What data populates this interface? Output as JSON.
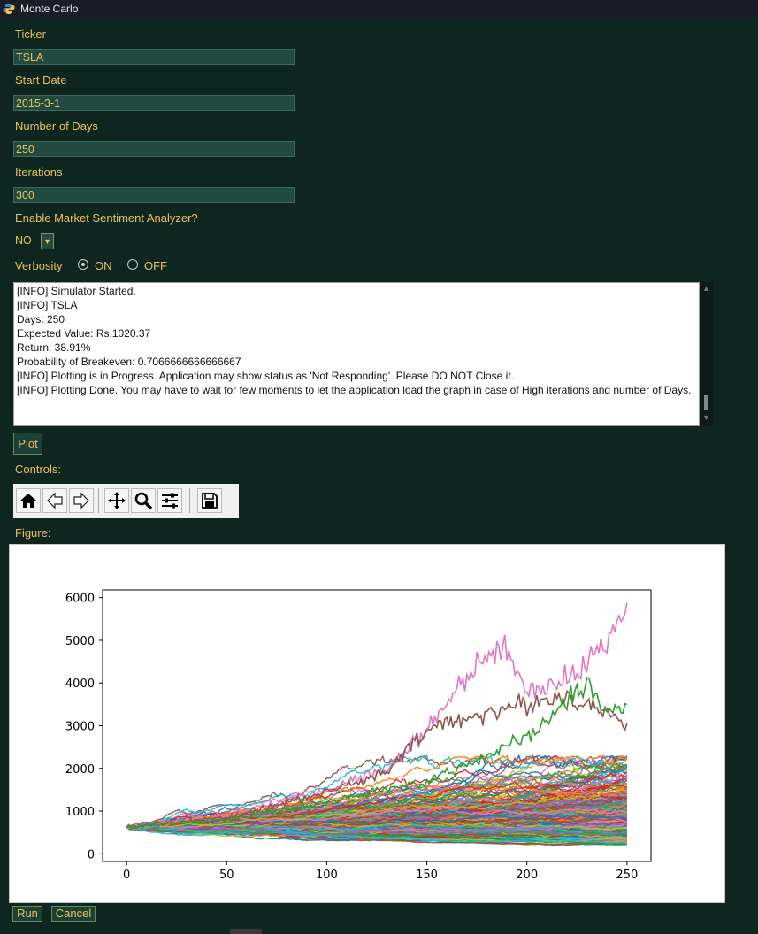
{
  "window": {
    "title": "Monte Carlo"
  },
  "form": {
    "ticker_label": "Ticker",
    "ticker_value": "TSLA",
    "start_date_label": "Start Date",
    "start_date_value": "2015-3-1",
    "days_label": "Number of Days",
    "days_value": "250",
    "iterations_label": "Iterations",
    "iterations_value": "300",
    "sentiment_label": "Enable Market Sentiment Analyzer?",
    "sentiment_value": "NO",
    "verbosity_label": "Verbosity",
    "verbosity_on": "ON",
    "verbosity_off": "OFF",
    "verbosity_selected": "ON"
  },
  "log": {
    "lines": [
      "[INFO] Simulator Started.",
      "[INFO] TSLA",
      "Days: 250",
      "Expected Value: Rs.1020.37",
      "Return: 38.91%",
      "Probability of Breakeven: 0.7066666666666667",
      "[INFO] Plotting is in Progress. Application may show status as 'Not Responding'. Please DO NOT Close it.",
      "[INFO] Plotting Done. You may have to wait for few moments to let the application load the graph in case of High iterations and number of Days."
    ]
  },
  "buttons": {
    "plot": "Plot",
    "run": "Run",
    "cancel": "Cancel"
  },
  "labels": {
    "controls": "Controls:",
    "figure": "Figure:"
  },
  "toolbar_icons": [
    "home-icon",
    "back-icon",
    "forward-icon",
    "pan-icon",
    "zoom-icon",
    "configure-icon",
    "save-icon"
  ],
  "colors": {
    "background": "#0f2620",
    "label_text": "#e8c25a",
    "field_bg": "#234a41",
    "series_palette": [
      "#1f77b4",
      "#ff7f0e",
      "#2ca02c",
      "#d62728",
      "#9467bd",
      "#8c564b",
      "#e377c2",
      "#7f7f7f",
      "#bcbd22",
      "#17becf"
    ]
  },
  "chart_data": {
    "type": "line",
    "title": "",
    "xlabel": "",
    "ylabel": "",
    "xlim": [
      -12,
      262
    ],
    "ylim": [
      -180,
      6180
    ],
    "x_ticks": [
      0,
      50,
      100,
      150,
      200,
      250
    ],
    "y_ticks": [
      0,
      1000,
      2000,
      3000,
      4000,
      5000,
      6000
    ],
    "x_tick_labels": [
      "0",
      "50",
      "100",
      "150",
      "200",
      "250"
    ],
    "y_tick_labels": [
      "0",
      "1000",
      "2000",
      "3000",
      "4000",
      "5000",
      "6000"
    ],
    "grid": false,
    "simulation": {
      "paths": 300,
      "days": 250,
      "start_value": 620
    },
    "highlighted_series": [
      {
        "name": "pink",
        "color": "#e377c2",
        "x": [
          0,
          50,
          100,
          130,
          150,
          175,
          190,
          200,
          225,
          240,
          250
        ],
        "y": [
          620,
          900,
          1500,
          2000,
          2900,
          4500,
          4800,
          3800,
          4200,
          5000,
          5880
        ]
      },
      {
        "name": "brown",
        "color": "#8c564b",
        "x": [
          0,
          50,
          100,
          130,
          150,
          170,
          200,
          220,
          240,
          250
        ],
        "y": [
          620,
          850,
          1450,
          1900,
          2900,
          3200,
          3500,
          3700,
          3300,
          3050
        ]
      },
      {
        "name": "green",
        "color": "#2ca02c",
        "x": [
          0,
          50,
          100,
          150,
          200,
          230,
          240,
          250
        ],
        "y": [
          620,
          800,
          1200,
          1700,
          2700,
          4000,
          3300,
          3500
        ]
      }
    ]
  }
}
